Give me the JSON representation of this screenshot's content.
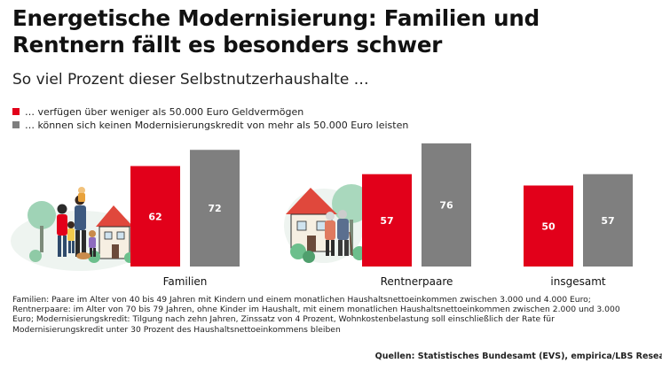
{
  "header": {
    "title": "Energetische Modernisierung: Familien und Rentnern fällt es besonders schwer",
    "subtitle": "So viel Prozent dieser Selbstnutzerhaushalte …"
  },
  "colors": {
    "red": "#e2001a",
    "gray": "#7f7f7f",
    "label_text": "#ffffff"
  },
  "chart_data": {
    "type": "bar",
    "categories": [
      "Familien",
      "Rentnerpaare",
      "insgesamt"
    ],
    "series": [
      {
        "name": "… verfügen über weniger als 50.000 Euro Geldvermögen",
        "color": "#e2001a",
        "values": [
          62,
          57,
          50
        ]
      },
      {
        "name": "… können sich keinen Modernisierungskredit von mehr als 50.000 Euro leisten",
        "color": "#7f7f7f",
        "values": [
          72,
          76,
          57
        ]
      }
    ],
    "ylim": [
      0,
      100
    ],
    "legend_position": "top-left",
    "grid": false,
    "illustrations": [
      "family-house-illustration",
      "senior-couple-house-illustration"
    ]
  },
  "footnote": "Familien: Paare im Alter von 40 bis 49 Jahren mit Kindern und einem monatlichen Haushaltsnettoeinkommen zwischen 3.000 und 4.000 Euro; Rentnerpaare: im Alter von 70 bis 79 Jahren, ohne Kinder im Haushalt, mit einem monatlichen Haushaltsnettoeinkommen zwischen 2.000 und 3.000 Euro; Modernisierungskredit: Tilgung nach zehn Jahren, Zinssatz von 4 Prozent, Wohnkostenbelastung soll einschließlich der Rate für Modernisierungskredit unter 30 Prozent des Haushaltsnettoeinkommens bleiben",
  "source": "Quellen: Statistisches Bundesamt (EVS), empirica/LBS Research"
}
